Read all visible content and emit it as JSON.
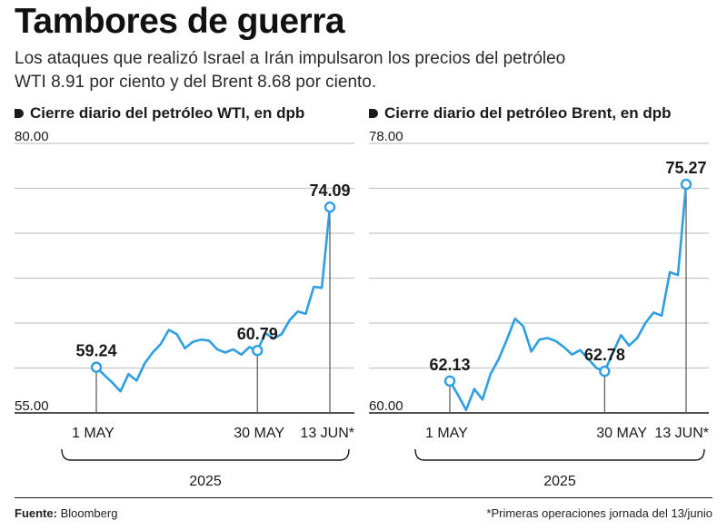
{
  "title": "Tambores de guerra",
  "subtitle": "Los ataques que realizó Israel a Irán impulsaron los precios del petróleo WTI 8.91 por ciento y del Brent 8.68 por ciento.",
  "source_label": "Fuente:",
  "source_name": "Bloomberg",
  "footnote": "*Primeras operaciones jornada del 13/junio",
  "colors": {
    "line": "#2e9fe0",
    "grid": "#c8c8c8",
    "marker_fill": "#ffffff",
    "text": "#1a1a1a"
  },
  "chart_data": [
    {
      "type": "line",
      "title": "Cierre diario del petróleo WTI, en dpb",
      "ylim": [
        55,
        80
      ],
      "y_tick_labels": [
        "80.00",
        "55.00"
      ],
      "x_tick_labels": [
        "1 MAY",
        "30 MAY",
        "13 JUN*"
      ],
      "year_label": "2025",
      "grid": true,
      "values": [
        59.24,
        58.5,
        57.8,
        57.0,
        58.6,
        58.0,
        59.6,
        60.6,
        61.4,
        62.7,
        62.3,
        61.0,
        61.6,
        61.8,
        61.7,
        60.9,
        60.6,
        60.9,
        60.4,
        61.1,
        60.79,
        62.4,
        61.9,
        62.3,
        63.6,
        64.4,
        64.2,
        66.7,
        66.6,
        74.09
      ],
      "labeled_points": [
        {
          "index": 0,
          "label": "59.24"
        },
        {
          "index": 20,
          "label": "60.79"
        },
        {
          "index": 29,
          "label": "74.09"
        }
      ],
      "x_tick_indices": [
        0,
        20,
        29
      ]
    },
    {
      "type": "line",
      "title": "Cierre diario del petróleo Brent, en dpb",
      "ylim": [
        60,
        78
      ],
      "y_tick_labels": [
        "78.00",
        "60.00"
      ],
      "x_tick_labels": [
        "1 MAY",
        "30 MAY",
        "13 JUN*"
      ],
      "year_label": "2025",
      "grid": true,
      "values": [
        62.13,
        61.2,
        60.2,
        61.6,
        60.9,
        62.6,
        63.6,
        64.9,
        66.3,
        65.8,
        64.1,
        64.9,
        65.0,
        64.8,
        64.4,
        63.9,
        64.2,
        63.6,
        63.0,
        62.78,
        64.0,
        65.2,
        64.5,
        65.0,
        66.0,
        66.7,
        66.5,
        69.4,
        69.2,
        75.27
      ],
      "labeled_points": [
        {
          "index": 0,
          "label": "62.13"
        },
        {
          "index": 19,
          "label": "62.78"
        },
        {
          "index": 29,
          "label": "75.27"
        }
      ],
      "x_tick_indices": [
        0,
        19,
        29
      ]
    }
  ]
}
